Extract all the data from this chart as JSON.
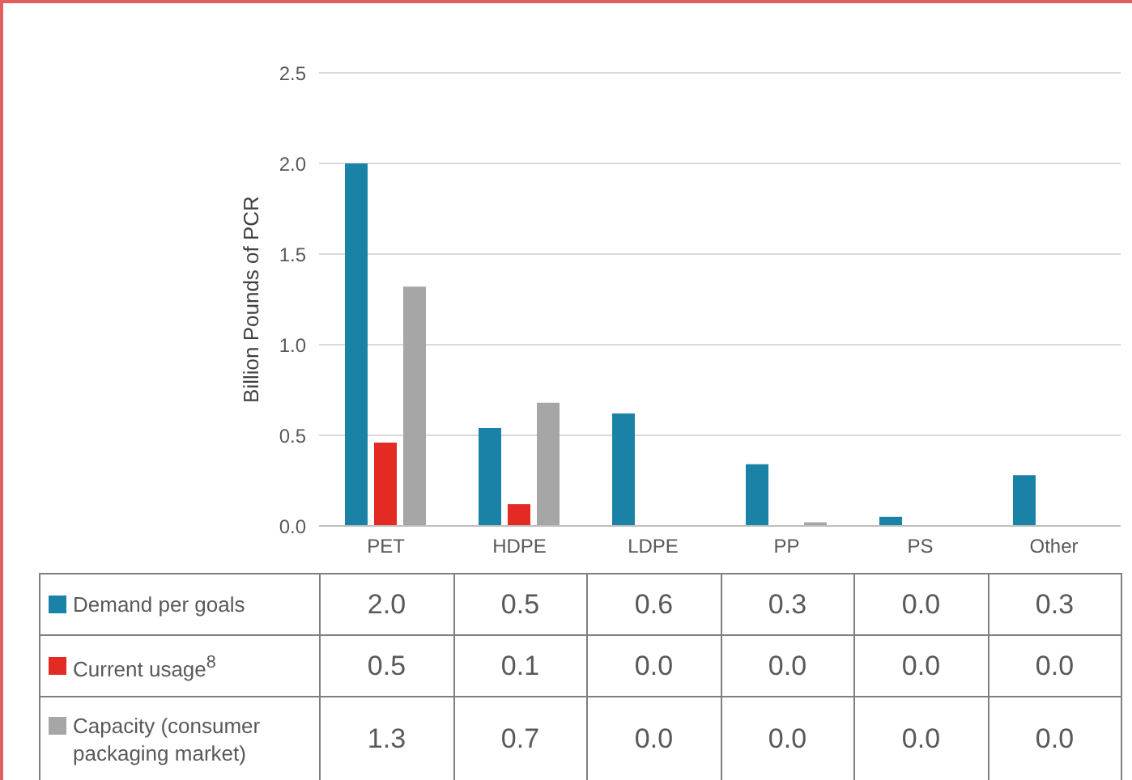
{
  "chart_data": {
    "type": "bar",
    "ylabel": "Billion Pounds of PCR",
    "categories": [
      "PET",
      "HDPE",
      "LDPE",
      "PP",
      "PS",
      "Other"
    ],
    "series": [
      {
        "name": "Demand per goals",
        "color": "#1a82a6",
        "values": [
          2.0,
          0.54,
          0.62,
          0.34,
          0.05,
          0.28
        ],
        "value_labels": [
          "2.0",
          "0.5",
          "0.6",
          "0.3",
          "0.0",
          "0.3"
        ]
      },
      {
        "name": "Current usage$^{8}$",
        "color": "#e32b24",
        "values": [
          0.46,
          0.12,
          0,
          0,
          0,
          0
        ],
        "value_labels": [
          "0.5",
          "0.1",
          "0.0",
          "0.0",
          "0.0",
          "0.0"
        ]
      },
      {
        "name": "Capacity (consumer packaging market)",
        "color": "#a6a6a6",
        "values": [
          1.32,
          0.68,
          0,
          0.02,
          0,
          0
        ],
        "value_labels": [
          "1.3",
          "0.7",
          "0.0",
          "0.0",
          "0.0",
          "0.0"
        ]
      }
    ],
    "ylim": [
      0,
      2.5
    ],
    "yticks": [
      {
        "value": 0,
        "label": "0.0"
      },
      {
        "value": 0.5,
        "label": "0.5"
      },
      {
        "value": 1,
        "label": "1.0"
      },
      {
        "value": 1.5,
        "label": "1.5"
      },
      {
        "value": 2,
        "label": "2.0"
      },
      {
        "value": 2.5,
        "label": "2.5"
      }
    ],
    "grid": "y",
    "legend": "bottom"
  }
}
